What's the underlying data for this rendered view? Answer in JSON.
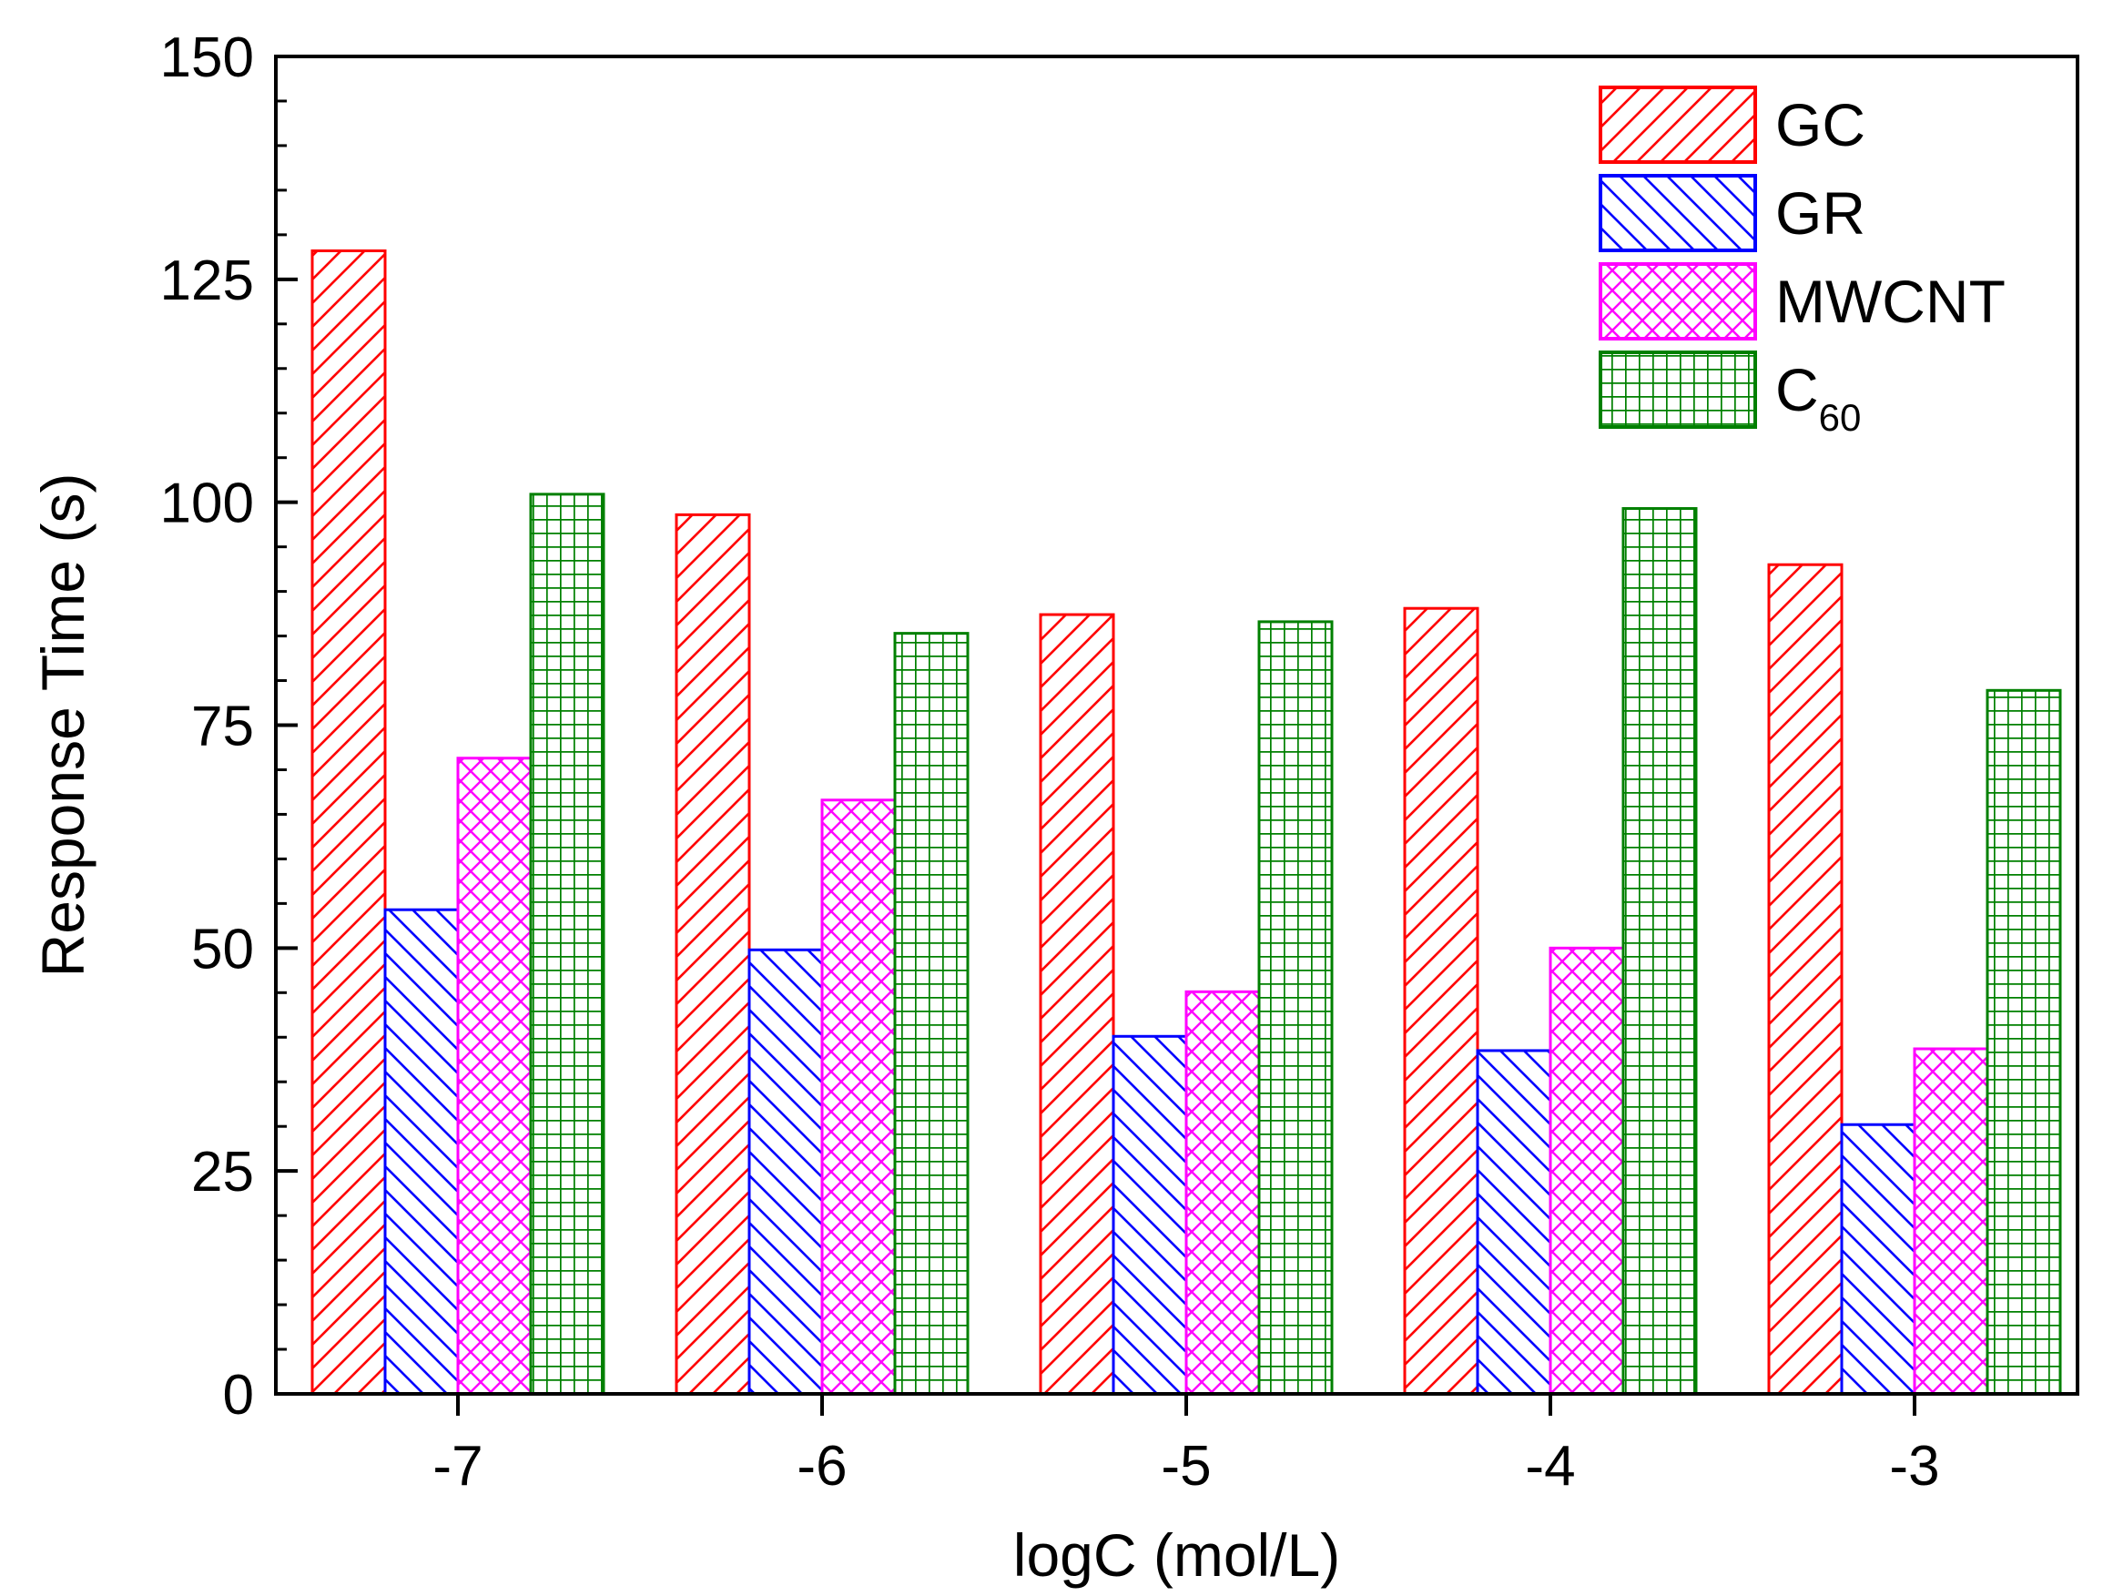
{
  "chart_data": {
    "type": "bar",
    "title": "",
    "xlabel": "logC (mol/L)",
    "ylabel": "Response Time (s)",
    "ylim": [
      0,
      150
    ],
    "yticks": [
      "0",
      "25",
      "50",
      "75",
      "100",
      "125",
      "150"
    ],
    "categories": [
      "-7",
      "-6",
      "-5",
      "-4",
      "-3"
    ],
    "legend_position": "top-right",
    "series": [
      {
        "name": "GC",
        "name_main": "GC",
        "name_sub": "",
        "color": "#ff0000",
        "pattern": "forward-diagonal",
        "values": [
          128.2,
          98.6,
          87.4,
          88.1,
          93.0
        ]
      },
      {
        "name": "GR",
        "name_main": "GR",
        "name_sub": "",
        "color": "#0000ff",
        "pattern": "back-diagonal",
        "values": [
          54.3,
          49.8,
          40.1,
          38.5,
          30.2
        ]
      },
      {
        "name": "MWCNT",
        "name_main": "MWCNT",
        "name_sub": "",
        "color": "#ff00ff",
        "pattern": "crosshatch",
        "values": [
          71.3,
          66.6,
          45.1,
          50.0,
          38.7
        ]
      },
      {
        "name": "C60",
        "name_main": "C",
        "name_sub": "60",
        "color": "#008000",
        "pattern": "grid",
        "values": [
          100.9,
          85.3,
          86.6,
          99.3,
          78.9
        ]
      }
    ]
  }
}
